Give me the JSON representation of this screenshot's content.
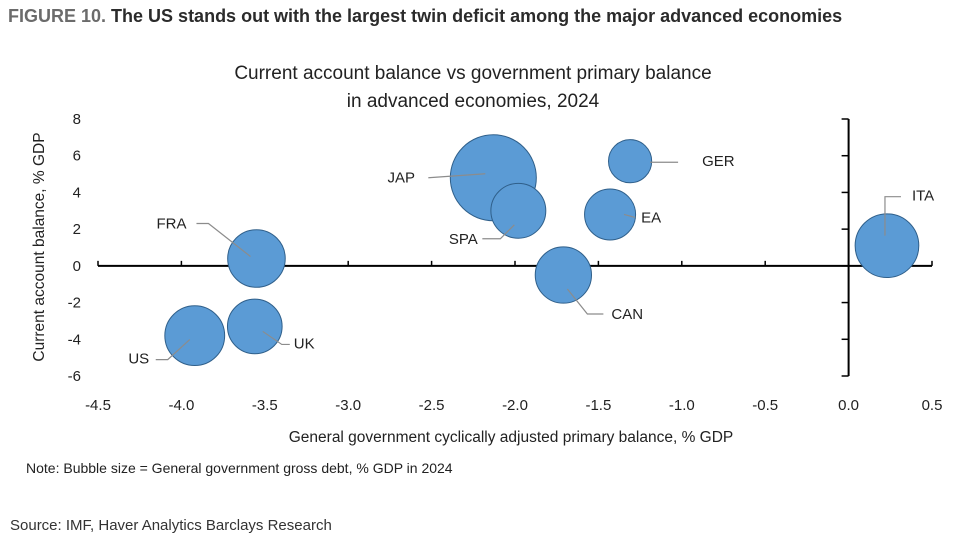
{
  "figure": {
    "number": "FIGURE 10.",
    "headline": "The US stands out with the largest twin deficit among the major advanced economies"
  },
  "note": "Note: Bubble size = General government gross debt, % GDP in 2024",
  "source": "Source: IMF, Haver Analytics Barclays Research",
  "colors": {
    "bubble_fill": "#5b9bd5",
    "bubble_stroke": "#2f5f8a",
    "axis": "#000000",
    "leader": "#8c8c8c"
  },
  "chart_data": {
    "type": "scatter",
    "title": [
      "Current account balance vs government primary balance",
      "in advanced economies, 2024"
    ],
    "xlabel": "General government cyclically adjusted primary balance, % GDP",
    "ylabel": "Current account balance, % GDP",
    "xlim": [
      -4.5,
      0.5
    ],
    "ylim": [
      -6,
      8
    ],
    "xticks": [
      "-4.5",
      "-4.0",
      "-3.5",
      "-3.0",
      "-2.5",
      "-2.0",
      "-1.5",
      "-1.0",
      "-0.5",
      "0.0",
      "0.5"
    ],
    "yticks": [
      "8",
      "6",
      "4",
      "2",
      "0",
      "-2",
      "-4",
      "-6"
    ],
    "size_measure": "General government gross debt, % GDP",
    "points": [
      {
        "label": "JAP",
        "x": -2.13,
        "y": 4.8,
        "debt": 250
      },
      {
        "label": "GER",
        "x": -1.31,
        "y": 5.7,
        "debt": 63
      },
      {
        "label": "ITA",
        "x": 0.23,
        "y": 1.1,
        "debt": 137
      },
      {
        "label": "EA",
        "x": -1.43,
        "y": 2.8,
        "debt": 88
      },
      {
        "label": "SPA",
        "x": -1.98,
        "y": 3.0,
        "debt": 102
      },
      {
        "label": "FRA",
        "x": -3.55,
        "y": 0.4,
        "debt": 112
      },
      {
        "label": "CAN",
        "x": -1.71,
        "y": -0.5,
        "debt": 107
      },
      {
        "label": "UK",
        "x": -3.56,
        "y": -3.3,
        "debt": 101
      },
      {
        "label": "US",
        "x": -3.92,
        "y": -3.8,
        "debt": 121
      }
    ]
  }
}
